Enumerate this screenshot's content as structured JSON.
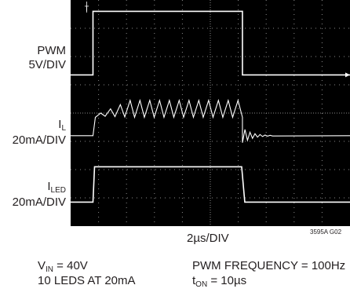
{
  "chart_data": {
    "type": "line",
    "xlabel": "2µs/DIV",
    "time_unit": "µs",
    "x_divisions": 10,
    "y_divisions": 8,
    "grid": true,
    "x_per_div_us": 2,
    "trigger_marker": "T",
    "channels": [
      {
        "name": "PWM",
        "scale": "5V/DIV",
        "label_main": "PWM",
        "label_scale": "5V/DIV",
        "low_div": 5.35,
        "high_div": 7.6,
        "rise_us": 1.6,
        "fall_us": 12.3
      },
      {
        "name": "IL",
        "scale": "20mA/DIV",
        "label_main": "I",
        "label_sub": "L",
        "label_scale": "20mA/DIV",
        "base_div": 3.2,
        "ripple_low_div": 3.85,
        "ripple_high_div": 4.45,
        "ripple_cycles": 15,
        "rise_us": 1.6,
        "fall_us": 12.3
      },
      {
        "name": "ILED",
        "scale": "20mA/DIV",
        "label_main": "I",
        "label_sub": "LED",
        "label_scale": "20mA/DIV",
        "low_div": 0.85,
        "high_div": 2.1,
        "rise_us": 1.6,
        "fall_us": 12.3
      }
    ]
  },
  "conditions": {
    "vin_main": "V",
    "vin_sub": "IN",
    "vin_value": " = 40V",
    "leds": "10 LEDS AT 20mA",
    "pwm_freq": "PWM FREQUENCY = 100Hz",
    "ton_main": "t",
    "ton_sub": "ON",
    "ton_value": " = 10µs"
  },
  "figure_code": "3595A G02",
  "colors": {
    "screen": "#000000",
    "grid": "#8a8a8a",
    "trace": "#ffffff",
    "text": "#231f20"
  }
}
